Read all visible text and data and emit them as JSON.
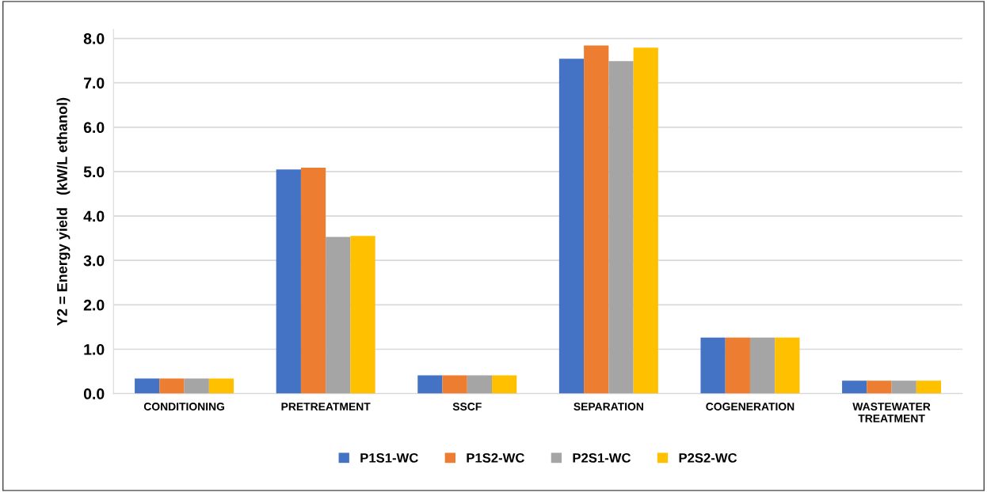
{
  "chart_data": {
    "type": "bar",
    "ylabel": "Y2 = Energy yield   (kW/L ethanol)",
    "categories": [
      "CONDITIONING",
      "PRETREATMENT",
      "SSCF",
      "SEPARATION",
      "COGENERATION",
      "WASTEWATER\nTREATMENT"
    ],
    "series": [
      {
        "name": "P1S1-WC",
        "color": "#4472c4",
        "values": [
          0.34,
          5.05,
          0.41,
          7.54,
          1.26,
          0.29
        ]
      },
      {
        "name": "P1S2-WC",
        "color": "#ed7d31",
        "values": [
          0.34,
          5.09,
          0.41,
          7.84,
          1.26,
          0.29
        ]
      },
      {
        "name": "P2S1-WC",
        "color": "#a5a5a5",
        "values": [
          0.34,
          3.53,
          0.41,
          7.49,
          1.26,
          0.29
        ]
      },
      {
        "name": "P2S2-WC",
        "color": "#ffc000",
        "values": [
          0.34,
          3.55,
          0.41,
          7.79,
          1.26,
          0.29
        ]
      }
    ],
    "ylim": [
      0,
      8.2
    ],
    "yticks": [
      {
        "value": 0,
        "label": "0.0"
      },
      {
        "value": 1,
        "label": "1.0"
      },
      {
        "value": 2,
        "label": "2.0"
      },
      {
        "value": 3,
        "label": "3.0"
      },
      {
        "value": 4,
        "label": "4.0"
      },
      {
        "value": 5,
        "label": "5.0"
      },
      {
        "value": 6,
        "label": "6.0"
      },
      {
        "value": 7,
        "label": "7.0"
      },
      {
        "value": 8,
        "label": "8.0"
      }
    ],
    "grid": "y",
    "legend": "bottom"
  }
}
